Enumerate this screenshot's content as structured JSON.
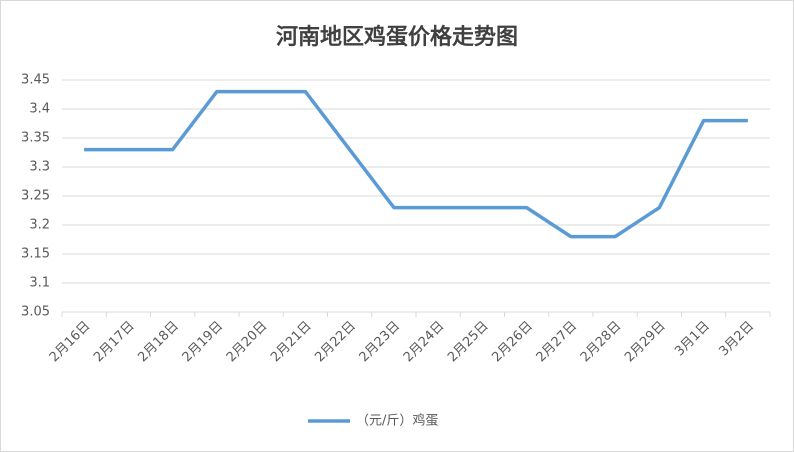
{
  "chart_data": {
    "type": "line",
    "title": "河南地区鸡蛋价格走势图",
    "categories": [
      "2月16日",
      "2月17日",
      "2月18日",
      "2月19日",
      "2月20日",
      "2月21日",
      "2月22日",
      "2月23日",
      "2月24日",
      "2月25日",
      "2月26日",
      "2月27日",
      "2月28日",
      "2月29日",
      "3月1日",
      "3月2日"
    ],
    "series": [
      {
        "name": "（元/斤）鸡蛋",
        "color": "#5b9bd5",
        "values": [
          3.33,
          3.33,
          3.33,
          3.43,
          3.43,
          3.43,
          3.33,
          3.23,
          3.23,
          3.23,
          3.23,
          3.18,
          3.18,
          3.23,
          3.38,
          3.38
        ]
      }
    ],
    "ylim": [
      3.05,
      3.45
    ],
    "yticks": [
      3.05,
      3.1,
      3.15,
      3.2,
      3.25,
      3.3,
      3.35,
      3.4,
      3.45
    ],
    "grid": true,
    "legend": "bottom"
  }
}
